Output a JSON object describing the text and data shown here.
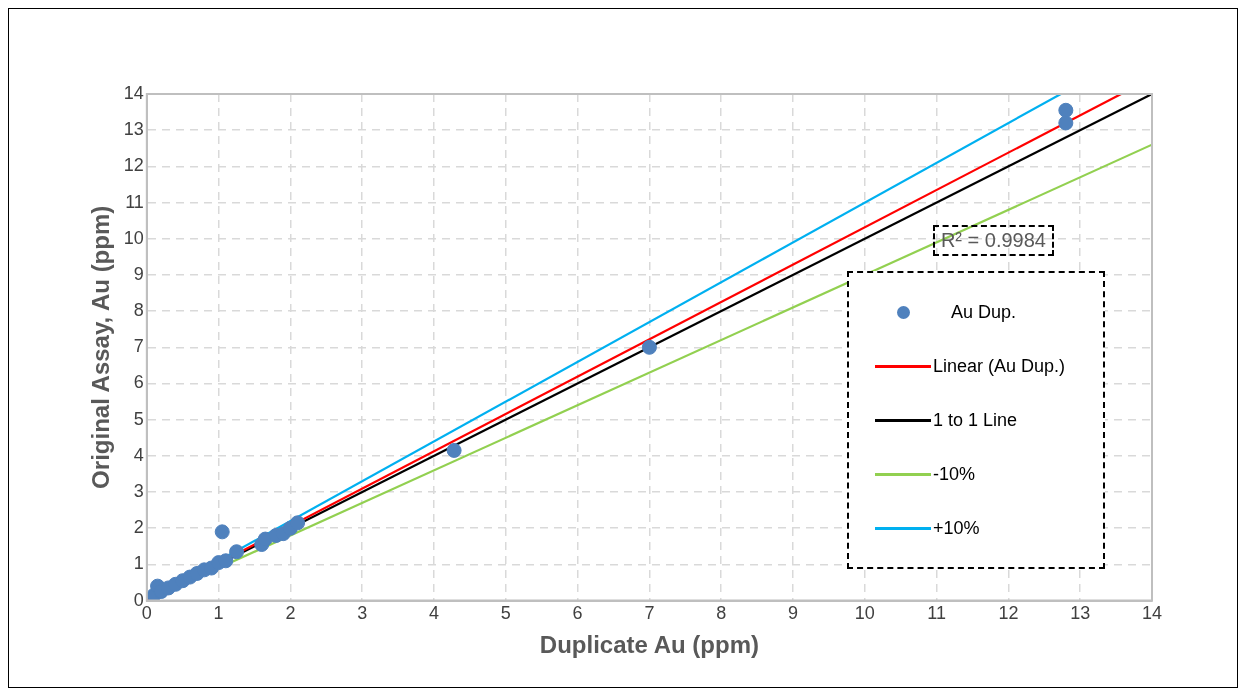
{
  "chart_data": {
    "type": "scatter",
    "xlabel": "Duplicate Au (ppm)",
    "ylabel": "Original Assay, Au (ppm)",
    "xlim": [
      0,
      14
    ],
    "xticks": [
      0,
      1,
      2,
      3,
      4,
      5,
      6,
      7,
      8,
      9,
      10,
      11,
      12,
      13,
      14
    ],
    "ylim": [
      0,
      14
    ],
    "yticks": [
      0,
      1,
      2,
      3,
      4,
      5,
      6,
      7,
      8,
      9,
      10,
      11,
      12,
      13,
      14
    ],
    "grid": true,
    "legend": "bottom right",
    "annotations": [
      "R² = 0.9984"
    ],
    "series": [
      {
        "name": "Au Dup.",
        "marker": "circle",
        "color": "#4f81bd",
        "x": [
          0.1,
          0.15,
          0.2,
          0.3,
          0.4,
          0.5,
          0.6,
          0.7,
          0.8,
          0.9,
          1.0,
          1.05,
          1.1,
          1.25,
          1.6,
          1.65,
          1.8,
          1.9,
          2.0,
          2.1,
          4.28,
          7.0,
          12.8,
          12.8
        ],
        "values": [
          0.15,
          0.4,
          0.25,
          0.35,
          0.45,
          0.55,
          0.65,
          0.75,
          0.85,
          0.9,
          1.05,
          1.9,
          1.1,
          1.35,
          1.55,
          1.7,
          1.8,
          1.85,
          2.0,
          2.15,
          4.15,
          7.0,
          13.55,
          13.2
        ]
      },
      {
        "name": "Linear (Au Dup.)",
        "type": "line",
        "marker": "none",
        "color": "#ff0000",
        "x": [
          0,
          13.57
        ],
        "values": [
          0,
          14
        ]
      },
      {
        "name": "1 to 1 Line",
        "type": "line",
        "marker": "none",
        "color": "#000000",
        "x": [
          0,
          14
        ],
        "values": [
          0,
          14
        ]
      },
      {
        "name": "-10%",
        "type": "line",
        "marker": "none",
        "color": "#92d050",
        "x": [
          0,
          14
        ],
        "values": [
          0,
          12.6
        ]
      },
      {
        "name": "+10%",
        "type": "line",
        "marker": "none",
        "color": "#00b0f0",
        "x": [
          0,
          12.73
        ],
        "values": [
          0,
          14
        ]
      }
    ]
  }
}
